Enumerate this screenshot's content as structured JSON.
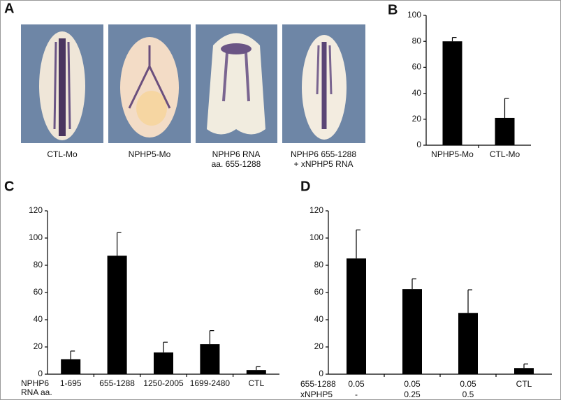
{
  "panel_a": {
    "label": "A",
    "captions": [
      [
        "CTL-Mo"
      ],
      [
        "NPHP5-Mo"
      ],
      [
        "NPHP6 RNA",
        "aa. 655-1288"
      ],
      [
        "NPHP6 655-1288",
        "+ xNPHP5 RNA"
      ]
    ]
  },
  "chart_data": [
    {
      "type": "bar",
      "panel_label": "B",
      "category_rows": [
        {
          "labels": [
            "NPHP5-Mo",
            "CTL-Mo"
          ]
        }
      ],
      "values": [
        80,
        21
      ],
      "errors": [
        3,
        15
      ],
      "color": "#000000",
      "ylim": [
        0,
        100
      ],
      "yticks": [
        0,
        20,
        40,
        60,
        80,
        100
      ]
    },
    {
      "type": "bar",
      "panel_label": "C",
      "category_rows": [
        {
          "name": [
            "NPHP6",
            "RNA aa."
          ],
          "labels": [
            "1-695",
            "655-1288",
            "1250-2005",
            "1699-2480",
            "CTL"
          ]
        }
      ],
      "values": [
        11,
        87,
        16,
        22,
        3
      ],
      "errors": [
        6,
        17,
        7.5,
        10,
        2.5
      ],
      "color": "#000000",
      "ylim": [
        0,
        120
      ],
      "yticks": [
        0,
        20,
        40,
        60,
        80,
        100,
        120
      ]
    },
    {
      "type": "bar",
      "panel_label": "D",
      "category_rows": [
        {
          "name": [
            "655-1288"
          ],
          "labels": [
            "0.05",
            "0.05",
            "0.05",
            "CTL"
          ]
        },
        {
          "name": [
            "xNPHP5"
          ],
          "labels": [
            "-",
            "0.25",
            "0.5",
            null
          ]
        }
      ],
      "values": [
        85,
        62.5,
        45,
        4.5
      ],
      "errors": [
        21,
        7.5,
        17,
        3
      ],
      "color": "#000000",
      "ylim": [
        0,
        120
      ],
      "yticks": [
        0,
        20,
        40,
        60,
        80,
        100,
        120
      ]
    }
  ]
}
